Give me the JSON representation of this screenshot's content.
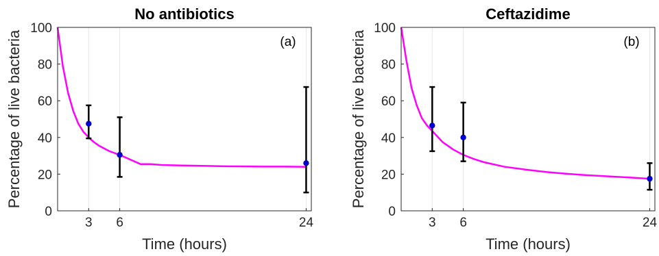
{
  "colors": {
    "fit": "#ff00ff",
    "points": "#0000cc",
    "errorbars": "#000000"
  },
  "chart_data": [
    {
      "type": "scatter",
      "title": "No antibiotics",
      "panel_label": "(a)",
      "xlabel": "Time (hours)",
      "ylabel": "Percentage of live bacteria",
      "xlim": [
        0,
        24.5
      ],
      "ylim": [
        0,
        100
      ],
      "xticks": [
        3,
        6,
        24
      ],
      "yticks": [
        0,
        20,
        40,
        60,
        80,
        100
      ],
      "grid": "x",
      "points": [
        {
          "x": 3,
          "y": 47.5,
          "low": 39.5,
          "high": 57.5
        },
        {
          "x": 6,
          "y": 30.5,
          "low": 18.5,
          "high": 51
        },
        {
          "x": 24,
          "y": 26,
          "low": 10,
          "high": 67.5
        }
      ],
      "fit_curve": {
        "x": [
          0,
          0.5,
          1,
          1.5,
          2,
          2.5,
          3,
          3.5,
          4,
          5,
          6,
          7,
          8,
          9,
          10,
          12,
          14,
          16,
          18,
          20,
          22,
          24
        ],
        "y": [
          100,
          79,
          64.5,
          54.5,
          47.5,
          43,
          40,
          37.5,
          35.5,
          32.5,
          30.5,
          28,
          25.5,
          25.5,
          25,
          24.7,
          24.5,
          24.3,
          24.2,
          24.1,
          24.1,
          24
        ]
      }
    },
    {
      "type": "scatter",
      "title": "Ceftazidime",
      "panel_label": "(b)",
      "xlabel": "Time (hours)",
      "ylabel": "Percentage of live bacteria",
      "xlim": [
        0,
        24.5
      ],
      "ylim": [
        0,
        100
      ],
      "xticks": [
        3,
        6,
        24
      ],
      "yticks": [
        0,
        20,
        40,
        60,
        80,
        100
      ],
      "grid": "x",
      "points": [
        {
          "x": 3,
          "y": 46.5,
          "low": 32.5,
          "high": 67.5
        },
        {
          "x": 6,
          "y": 40,
          "low": 27,
          "high": 59
        },
        {
          "x": 24,
          "y": 17.5,
          "low": 11.5,
          "high": 26
        }
      ],
      "fit_curve": {
        "x": [
          0,
          0.5,
          1,
          1.5,
          2,
          2.5,
          3,
          3.5,
          4,
          5,
          6,
          7,
          8,
          10,
          12,
          14,
          16,
          18,
          20,
          22,
          24
        ],
        "y": [
          100,
          82,
          67,
          57.5,
          50.5,
          46.5,
          43.5,
          40.5,
          37.5,
          33.5,
          30.5,
          28.3,
          26.5,
          24,
          22.5,
          21.2,
          20.2,
          19.4,
          18.8,
          18.2,
          17.5
        ]
      }
    }
  ]
}
